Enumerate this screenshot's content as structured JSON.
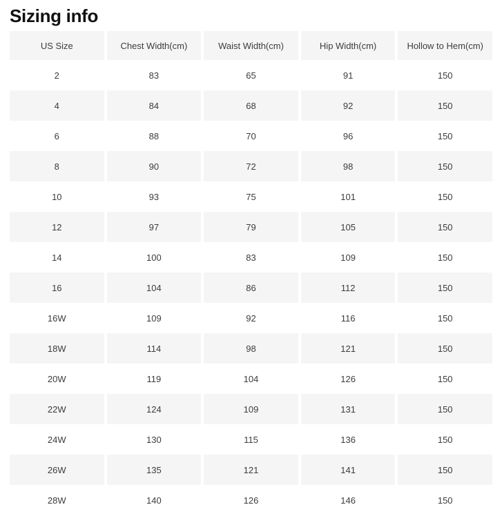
{
  "page": {
    "title": "Sizing info"
  },
  "colors": {
    "header_bg": "#f5f5f5",
    "row_alt_bg": "#f5f5f5",
    "row_bg": "#ffffff",
    "text": "#3c3c3c",
    "title_text": "#111111"
  },
  "table": {
    "columns": [
      "US Size",
      "Chest Width(cm)",
      "Waist Width(cm)",
      "Hip Width(cm)",
      "Hollow to Hem(cm)"
    ],
    "rows": [
      [
        "2",
        "83",
        "65",
        "91",
        "150"
      ],
      [
        "4",
        "84",
        "68",
        "92",
        "150"
      ],
      [
        "6",
        "88",
        "70",
        "96",
        "150"
      ],
      [
        "8",
        "90",
        "72",
        "98",
        "150"
      ],
      [
        "10",
        "93",
        "75",
        "101",
        "150"
      ],
      [
        "12",
        "97",
        "79",
        "105",
        "150"
      ],
      [
        "14",
        "100",
        "83",
        "109",
        "150"
      ],
      [
        "16",
        "104",
        "86",
        "112",
        "150"
      ],
      [
        "16W",
        "109",
        "92",
        "116",
        "150"
      ],
      [
        "18W",
        "114",
        "98",
        "121",
        "150"
      ],
      [
        "20W",
        "119",
        "104",
        "126",
        "150"
      ],
      [
        "22W",
        "124",
        "109",
        "131",
        "150"
      ],
      [
        "24W",
        "130",
        "115",
        "136",
        "150"
      ],
      [
        "26W",
        "135",
        "121",
        "141",
        "150"
      ],
      [
        "28W",
        "140",
        "126",
        "146",
        "150"
      ]
    ]
  }
}
